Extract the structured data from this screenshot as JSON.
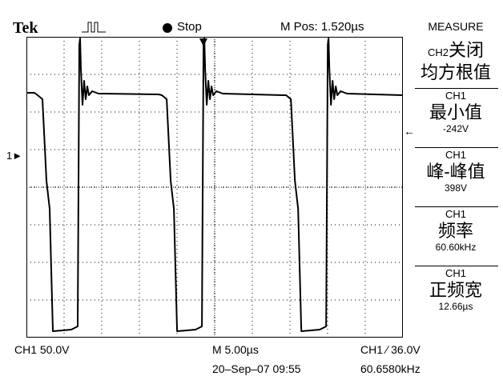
{
  "header": {
    "brand": "Tek",
    "acquisition_icon": "pulse-waveform-icon",
    "state_label": "Stop",
    "position": "M Pos: 1.520µs",
    "menu_title": "MEASURE"
  },
  "side_menu": {
    "items": [
      {
        "channel": "CH2",
        "label": "关闭"
      },
      {
        "channel": "",
        "label": "均方根值"
      },
      {
        "channel": "CH1",
        "label": "最小值",
        "value": "-242V"
      },
      {
        "channel": "CH1",
        "label": "峰-峰值",
        "value": "398V"
      },
      {
        "channel": "CH1",
        "label": "频率",
        "value": "60.60kHz"
      },
      {
        "channel": "CH1",
        "label": "正频宽",
        "value": "12.66µs"
      }
    ]
  },
  "markers": {
    "ch1_ref": "1",
    "menu_selector": "←"
  },
  "status": {
    "ch1_scale": "CH1  50.0V",
    "timebase": "M 5.00µs",
    "trigger": "CH1 ∕ 36.0V",
    "date": "20–Sep–07 09:55",
    "trigger_frequency": "60.6580kHz"
  },
  "waveform": {
    "channel": "CH1",
    "period_divisions": 3.3,
    "minimum_volts": -242,
    "peak_to_peak_volts": 398,
    "frequency_khz": 60.6,
    "positive_width_us": 12.66
  }
}
